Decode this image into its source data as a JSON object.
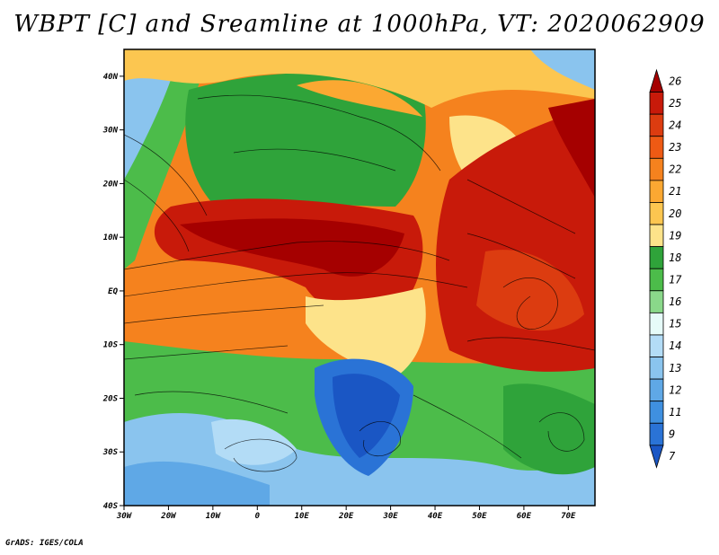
{
  "title": "WBPT [C] and Sreamline at 1000hPa, VT: 2020062909",
  "credit": "GrADS: IGES/COLA",
  "map": {
    "lat_labels": [
      "40N",
      "30N",
      "20N",
      "10N",
      "EQ",
      "10S",
      "20S",
      "30S",
      "40S"
    ],
    "lon_labels": [
      "30W",
      "20W",
      "10W",
      "0",
      "10E",
      "20E",
      "30E",
      "40E",
      "50E",
      "60E",
      "70E"
    ],
    "lat_range": [
      -40,
      45
    ],
    "lon_range": [
      -30,
      76
    ]
  },
  "colorbar": {
    "levels": [
      "26",
      "25",
      "24",
      "23",
      "22",
      "21",
      "20",
      "19",
      "18",
      "17",
      "16",
      "15",
      "14",
      "13",
      "12",
      "11",
      "9",
      "7"
    ],
    "colors": [
      "#a50000",
      "#c81a0a",
      "#dc3c10",
      "#ee5a14",
      "#f5821e",
      "#fba832",
      "#fcc650",
      "#fde38a",
      "#2fa33a",
      "#4cbc4a",
      "#8ad88a",
      "#e6fbf8",
      "#b3dcf6",
      "#8ac4ee",
      "#5fa8e6",
      "#3f90e0",
      "#2a73d6",
      "#1a56c4"
    ]
  },
  "colors": {
    "background": "#ffffff",
    "frame": "#000000"
  }
}
